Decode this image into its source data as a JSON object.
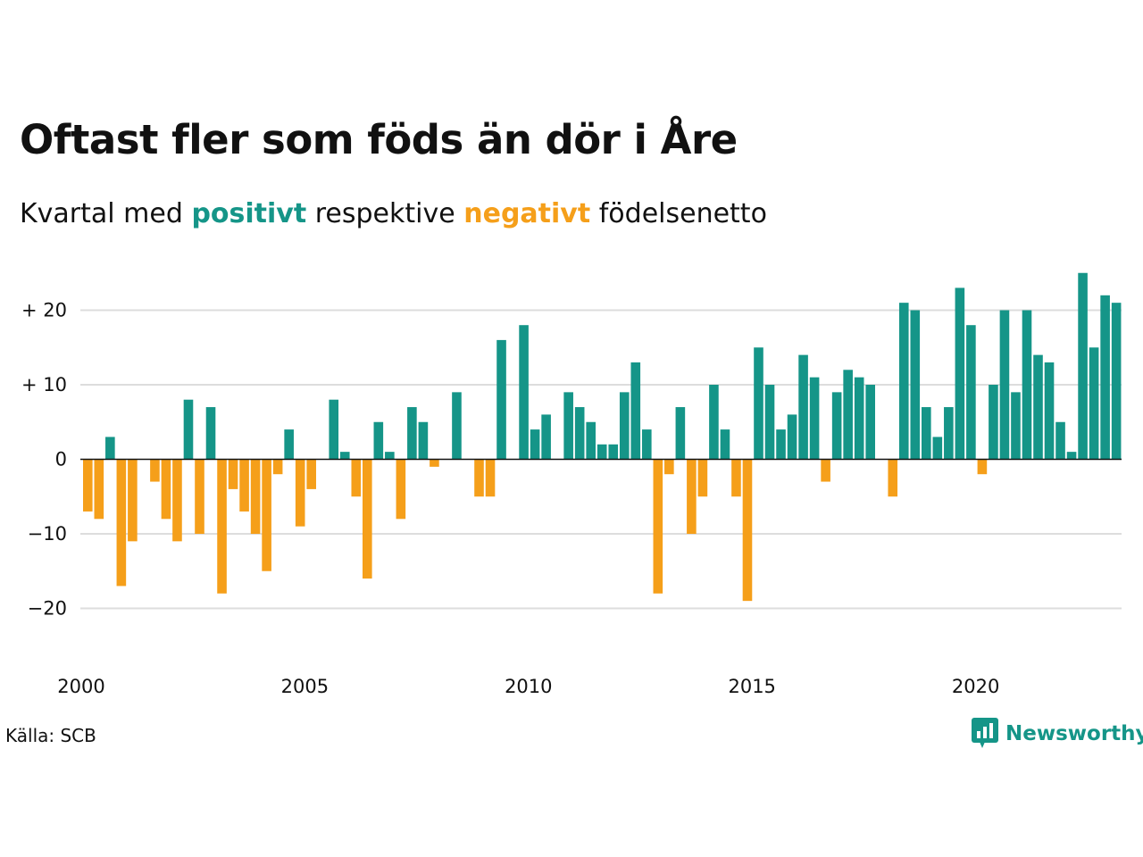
{
  "title": "Oftast fler som föds än dör i Åre",
  "subtitle": {
    "prefix": "Kvartal med",
    "positive_word": "positivt",
    "middle": "respektive",
    "negative_word": "negativt",
    "suffix": "födelsenetto"
  },
  "source": "Källa: SCB",
  "brand": "Newsworthy",
  "colors": {
    "positive": "#159588",
    "negative": "#f59f1a",
    "grid": "#dddddd",
    "baseline": "#111111"
  },
  "chart_data": {
    "type": "bar",
    "title": "Oftast fler som föds än dör i Åre",
    "xlabel": "",
    "ylabel": "",
    "ylim": [
      -25,
      25
    ],
    "grid": true,
    "y_ticks": [
      {
        "value": 20,
        "label": "+ 20"
      },
      {
        "value": 10,
        "label": "+ 10"
      },
      {
        "value": 0,
        "label": "0"
      },
      {
        "value": -10,
        "label": "−10"
      },
      {
        "value": -20,
        "label": "−20"
      }
    ],
    "x_ticks": [
      {
        "year": 2000,
        "label": "2000"
      },
      {
        "year": 2005,
        "label": "2005"
      },
      {
        "year": 2010,
        "label": "2010"
      },
      {
        "year": 2015,
        "label": "2015"
      },
      {
        "year": 2020,
        "label": "2020"
      }
    ],
    "start_year": 2000,
    "start_quarter": 1,
    "values": [
      -7,
      -8,
      3,
      -17,
      -11,
      0,
      -3,
      -8,
      -11,
      8,
      -10,
      7,
      -18,
      -4,
      -7,
      -10,
      -15,
      -2,
      4,
      -9,
      -4,
      0,
      8,
      1,
      -5,
      -16,
      5,
      1,
      -8,
      7,
      5,
      -1,
      0,
      9,
      0,
      -5,
      -5,
      16,
      0,
      18,
      4,
      6,
      0,
      9,
      7,
      5,
      2,
      2,
      9,
      13,
      4,
      -18,
      -2,
      7,
      -10,
      -5,
      10,
      4,
      -5,
      -19,
      15,
      10,
      4,
      6,
      14,
      11,
      -3,
      9,
      12,
      11,
      10,
      0,
      -5,
      21,
      20,
      7,
      3,
      7,
      23,
      18,
      -2,
      10,
      20,
      9,
      20,
      14,
      13,
      5,
      1,
      25,
      15,
      22,
      21
    ]
  }
}
